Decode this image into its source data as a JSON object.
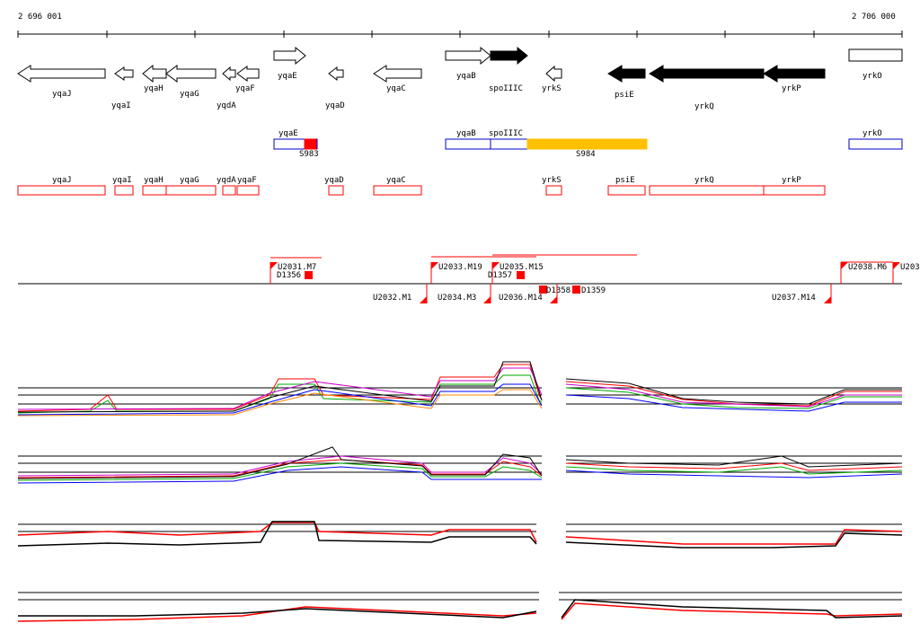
{
  "coordinates": {
    "start": "2 696 001",
    "end": "2 706 000"
  },
  "gene_track": [
    {
      "name": "yqaJ",
      "fill": "#ffffff"
    },
    {
      "name": "yqaI",
      "fill": "#ffffff"
    },
    {
      "name": "yqaH",
      "fill": "#ffffff"
    },
    {
      "name": "yqaG",
      "fill": "#ffffff"
    },
    {
      "name": "yqdA",
      "fill": "#ffffff"
    },
    {
      "name": "yqaF",
      "fill": "#ffffff"
    },
    {
      "name": "yqaE",
      "fill": "#ffffff"
    },
    {
      "name": "yqaD",
      "fill": "#ffffff"
    },
    {
      "name": "yqaC",
      "fill": "#ffffff"
    },
    {
      "name": "yqaB",
      "fill": "#ffffff"
    },
    {
      "name": "spoIIIC",
      "fill": "#000000"
    },
    {
      "name": "yrkS",
      "fill": "#ffffff"
    },
    {
      "name": "psiE",
      "fill": "#000000"
    },
    {
      "name": "yrkQ",
      "fill": "#000000"
    },
    {
      "name": "yrkP",
      "fill": "#000000"
    },
    {
      "name": "yrkO",
      "fill": "#ffffff"
    }
  ],
  "upper_feature_track": {
    "blue_boxes": [
      "yqaE",
      "yqaB",
      "spoIIIC",
      "yrkO"
    ],
    "segments": [
      {
        "name": "S983",
        "color": "#ff0000"
      },
      {
        "name": "S984",
        "color": "#ffc000"
      }
    ]
  },
  "lower_feature_track": {
    "red_boxes": [
      "yqaJ",
      "yqaI",
      "yqaH",
      "yqaG",
      "yqdA",
      "yqaF",
      "yqaD",
      "yqaC",
      "yrkS",
      "psiE",
      "yrkQ",
      "yrkP"
    ]
  },
  "tss_track": {
    "above": [
      "U2031.M7",
      "U2033.M19",
      "U2035.M15",
      "U2038.M6",
      "U203"
    ],
    "below": [
      "U2032.M1",
      "U2034.M3",
      "U2036.M14",
      "U2037.M14"
    ],
    "markers": [
      "D1356",
      "D1357",
      "D1358",
      "D1359"
    ]
  },
  "colors": {
    "accent": "#ff0000",
    "blue": "#0000cc",
    "gold": "#ffc000"
  }
}
